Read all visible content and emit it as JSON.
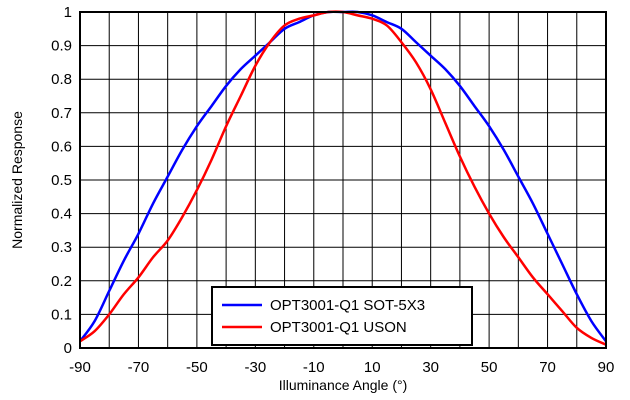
{
  "chart_data": {
    "type": "line",
    "title": "",
    "xlabel": "Illuminance Angle (°)",
    "ylabel": "Normalized Response",
    "xlim": [
      -90,
      90
    ],
    "ylim": [
      0,
      1
    ],
    "x_ticks": [
      -90,
      -70,
      -50,
      -30,
      -10,
      10,
      30,
      50,
      70,
      90
    ],
    "y_ticks": [
      0,
      0.1,
      0.2,
      0.3,
      0.4,
      0.5,
      0.6,
      0.7,
      0.8,
      0.9,
      1
    ],
    "x_tick_labels": [
      "-90",
      "-70",
      "-50",
      "-30",
      "-10",
      "10",
      "30",
      "50",
      "70",
      "90"
    ],
    "y_tick_labels": [
      "0",
      "0.1",
      "0.2",
      "0.3",
      "0.4",
      "0.5",
      "0.6",
      "0.7",
      "0.8",
      "0.9",
      "1"
    ],
    "grid": true,
    "legend_position": "bottom-center",
    "series": [
      {
        "name": "OPT3001-Q1 SOT-5X3",
        "color": "#0000ff",
        "x": [
          -90,
          -85,
          -80,
          -75,
          -70,
          -65,
          -60,
          -55,
          -50,
          -45,
          -40,
          -35,
          -30,
          -25,
          -20,
          -15,
          -10,
          -5,
          0,
          5,
          10,
          15,
          20,
          25,
          30,
          35,
          40,
          45,
          50,
          55,
          60,
          65,
          70,
          75,
          80,
          85,
          90
        ],
        "y": [
          0.02,
          0.08,
          0.17,
          0.26,
          0.34,
          0.43,
          0.51,
          0.59,
          0.66,
          0.72,
          0.78,
          0.83,
          0.87,
          0.91,
          0.95,
          0.97,
          0.99,
          1.0,
          1.0,
          1.0,
          0.99,
          0.97,
          0.95,
          0.91,
          0.87,
          0.83,
          0.78,
          0.72,
          0.66,
          0.59,
          0.51,
          0.43,
          0.34,
          0.25,
          0.16,
          0.08,
          0.02
        ]
      },
      {
        "name": "OPT3001-Q1 USON",
        "color": "#ff0000",
        "x": [
          -90,
          -85,
          -80,
          -75,
          -70,
          -65,
          -60,
          -55,
          -50,
          -45,
          -40,
          -35,
          -30,
          -25,
          -20,
          -15,
          -10,
          -5,
          0,
          5,
          10,
          15,
          20,
          25,
          30,
          35,
          40,
          45,
          50,
          55,
          60,
          65,
          70,
          75,
          80,
          85,
          90
        ],
        "y": [
          0.02,
          0.05,
          0.1,
          0.16,
          0.21,
          0.27,
          0.32,
          0.39,
          0.47,
          0.56,
          0.66,
          0.75,
          0.84,
          0.91,
          0.96,
          0.98,
          0.99,
          1.0,
          1.0,
          0.99,
          0.98,
          0.96,
          0.91,
          0.85,
          0.77,
          0.67,
          0.57,
          0.48,
          0.4,
          0.33,
          0.27,
          0.21,
          0.16,
          0.11,
          0.06,
          0.03,
          0.01
        ]
      }
    ]
  }
}
